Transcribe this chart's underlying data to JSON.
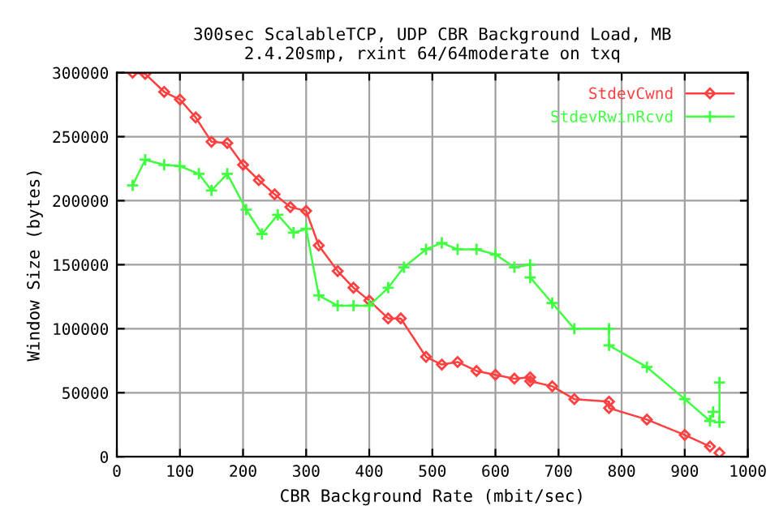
{
  "chart_data": {
    "type": "line",
    "title": "300sec ScalableTCP, UDP CBR Background Load, MB\n2.4.20smp, rxint 64/64moderate on txq",
    "xlabel": "CBR Background Rate (mbit/sec)",
    "ylabel": "Window Size (bytes)",
    "xlim": [
      0,
      1000
    ],
    "xticks": [
      0,
      100,
      200,
      300,
      400,
      500,
      600,
      700,
      800,
      900,
      1000
    ],
    "ylim": [
      0,
      300000
    ],
    "yticks": [
      0,
      50000,
      100000,
      150000,
      200000,
      250000,
      300000
    ],
    "grid": true,
    "legend": "top right",
    "series": [
      {
        "name": "StdevCwnd",
        "color": "#ff4040",
        "marker": "diamond",
        "x": [
          25,
          45,
          75,
          100,
          125,
          150,
          175,
          200,
          225,
          250,
          275,
          300,
          320,
          350,
          375,
          400,
          430,
          450,
          490,
          515,
          540,
          570,
          600,
          630,
          655,
          655,
          690,
          725,
          780,
          780,
          840,
          900,
          940,
          950,
          955
        ],
        "values": [
          300000,
          299000,
          285000,
          279000,
          265000,
          246000,
          245000,
          228000,
          216000,
          205000,
          195000,
          192000,
          165000,
          145000,
          132000,
          122000,
          108000,
          108000,
          78000,
          72000,
          74000,
          67000,
          64000,
          61000,
          62000,
          59000,
          55000,
          45000,
          43000,
          38000,
          29000,
          17000,
          8000,
          null,
          3000
        ]
      },
      {
        "name": "StdevRwinRcvd",
        "color": "#40ff40",
        "marker": "cross",
        "x": [
          25,
          45,
          75,
          100,
          130,
          150,
          175,
          205,
          230,
          255,
          280,
          300,
          320,
          350,
          375,
          400,
          430,
          455,
          490,
          515,
          540,
          570,
          600,
          630,
          655,
          655,
          690,
          725,
          780,
          780,
          840,
          900,
          940,
          945,
          950,
          955,
          955
        ],
        "values": [
          212000,
          232000,
          228000,
          227000,
          221000,
          208000,
          221000,
          193000,
          174000,
          189000,
          175000,
          178000,
          126000,
          118000,
          118000,
          118000,
          132000,
          148000,
          162000,
          167000,
          162000,
          162000,
          158000,
          148000,
          150000,
          140000,
          120000,
          100000,
          100000,
          87000,
          70000,
          45000,
          28000,
          35000,
          null,
          27000,
          58000
        ]
      }
    ]
  }
}
